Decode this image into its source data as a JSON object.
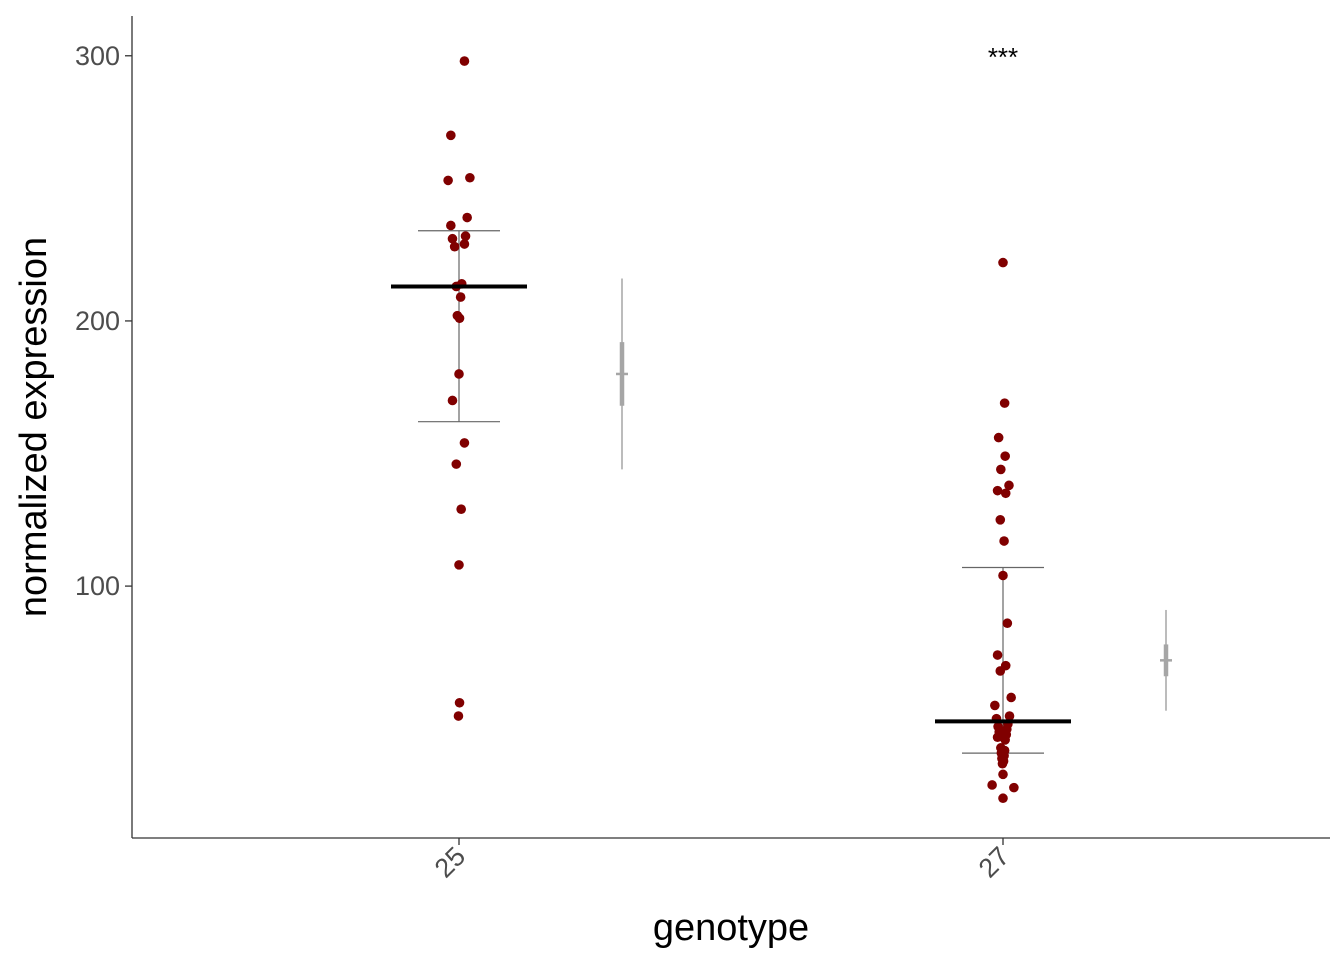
{
  "chart_data": {
    "type": "scatter",
    "xlabel": "genotype",
    "ylabel": "normalized expression",
    "categories": [
      "25",
      "27"
    ],
    "ylim": [
      5,
      315
    ],
    "yticks": [
      100,
      200,
      300
    ],
    "grid": false,
    "colors": {
      "points": "#800000",
      "median": "#000000",
      "errorbar": "#666666",
      "interval": "#a6a6a6",
      "axis": "#333333"
    },
    "series": [
      {
        "category": "25",
        "points": [
          {
            "dx": 0.01,
            "y": 298
          },
          {
            "dx": -0.015,
            "y": 270
          },
          {
            "dx": 0.02,
            "y": 254
          },
          {
            "dx": -0.02,
            "y": 253
          },
          {
            "dx": 0.015,
            "y": 239
          },
          {
            "dx": -0.015,
            "y": 236
          },
          {
            "dx": 0.012,
            "y": 232
          },
          {
            "dx": -0.012,
            "y": 231
          },
          {
            "dx": 0.01,
            "y": 229
          },
          {
            "dx": -0.008,
            "y": 228
          },
          {
            "dx": 0.005,
            "y": 214
          },
          {
            "dx": -0.005,
            "y": 213
          },
          {
            "dx": 0.003,
            "y": 209
          },
          {
            "dx": -0.003,
            "y": 202
          },
          {
            "dx": 0.001,
            "y": 201
          },
          {
            "dx": 0.0,
            "y": 180
          },
          {
            "dx": -0.012,
            "y": 170
          },
          {
            "dx": 0.01,
            "y": 154
          },
          {
            "dx": -0.005,
            "y": 146
          },
          {
            "dx": 0.004,
            "y": 129
          },
          {
            "dx": 0.0,
            "y": 108
          },
          {
            "dx": 0.001,
            "y": 56
          },
          {
            "dx": -0.001,
            "y": 51
          }
        ],
        "median": 213,
        "errorbar": [
          162,
          234
        ],
        "interval": {
          "center": 180,
          "inner": [
            168,
            192
          ],
          "outer": [
            144,
            216
          ]
        }
      },
      {
        "category": "27",
        "points": [
          {
            "dx": 0.0,
            "y": 222
          },
          {
            "dx": 0.003,
            "y": 169
          },
          {
            "dx": -0.008,
            "y": 156
          },
          {
            "dx": 0.004,
            "y": 149
          },
          {
            "dx": -0.004,
            "y": 144
          },
          {
            "dx": 0.011,
            "y": 138
          },
          {
            "dx": -0.01,
            "y": 136
          },
          {
            "dx": 0.005,
            "y": 135
          },
          {
            "dx": -0.005,
            "y": 125
          },
          {
            "dx": 0.002,
            "y": 117
          },
          {
            "dx": 0.0,
            "y": 104
          },
          {
            "dx": 0.008,
            "y": 86
          },
          {
            "dx": -0.01,
            "y": 74
          },
          {
            "dx": 0.005,
            "y": 70
          },
          {
            "dx": -0.005,
            "y": 68
          },
          {
            "dx": 0.015,
            "y": 58
          },
          {
            "dx": -0.015,
            "y": 55
          },
          {
            "dx": 0.012,
            "y": 51
          },
          {
            "dx": -0.012,
            "y": 50
          },
          {
            "dx": 0.009,
            "y": 48
          },
          {
            "dx": -0.009,
            "y": 47
          },
          {
            "dx": 0.007,
            "y": 46
          },
          {
            "dx": -0.007,
            "y": 45
          },
          {
            "dx": 0.006,
            "y": 44
          },
          {
            "dx": -0.01,
            "y": 43
          },
          {
            "dx": 0.004,
            "y": 42
          },
          {
            "dx": -0.004,
            "y": 39
          },
          {
            "dx": 0.003,
            "y": 38
          },
          {
            "dx": -0.003,
            "y": 37
          },
          {
            "dx": 0.002,
            "y": 36
          },
          {
            "dx": -0.002,
            "y": 35
          },
          {
            "dx": 0.001,
            "y": 34
          },
          {
            "dx": -0.001,
            "y": 33
          },
          {
            "dx": 0.0,
            "y": 29
          },
          {
            "dx": -0.02,
            "y": 25
          },
          {
            "dx": 0.02,
            "y": 24
          },
          {
            "dx": 0.0,
            "y": 20
          }
        ],
        "median": 49,
        "errorbar": [
          37,
          107
        ],
        "interval": {
          "center": 72,
          "inner": [
            66,
            78
          ],
          "outer": [
            53,
            91
          ]
        }
      }
    ],
    "annotations": [
      {
        "category": "27",
        "y": 300,
        "text": "***"
      }
    ]
  }
}
